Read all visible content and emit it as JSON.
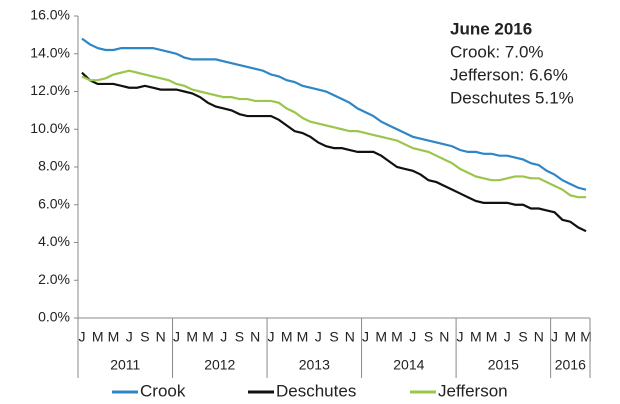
{
  "chart_data": {
    "type": "line",
    "categories": [
      "J",
      null,
      "M",
      null,
      "M",
      null,
      "J",
      null,
      "S",
      null,
      "N",
      null,
      "J",
      null,
      "M",
      null,
      "M",
      null,
      "J",
      null,
      "S",
      null,
      "N",
      null,
      "J",
      null,
      "M",
      null,
      "M",
      null,
      "J",
      null,
      "S",
      null,
      "N",
      null,
      "J",
      null,
      "M",
      null,
      "M",
      null,
      "J",
      null,
      "S",
      null,
      "N",
      null,
      "J",
      null,
      "M",
      null,
      "M",
      null,
      "J",
      null,
      "S",
      null,
      "N",
      null,
      "J",
      null,
      "M",
      null,
      "M"
    ],
    "x_groups": [
      "2011",
      "2012",
      "2013",
      "2014",
      "2015",
      "2016"
    ],
    "series": [
      {
        "name": "Crook",
        "color": "#2f86c6",
        "values": [
          14.8,
          14.5,
          14.3,
          14.2,
          14.2,
          14.3,
          14.3,
          14.3,
          14.3,
          14.3,
          14.2,
          14.1,
          14.0,
          13.8,
          13.7,
          13.7,
          13.7,
          13.7,
          13.6,
          13.5,
          13.4,
          13.3,
          13.2,
          13.1,
          12.9,
          12.8,
          12.6,
          12.5,
          12.3,
          12.2,
          12.1,
          12.0,
          11.8,
          11.6,
          11.4,
          11.1,
          10.9,
          10.7,
          10.4,
          10.2,
          10.0,
          9.8,
          9.6,
          9.5,
          9.4,
          9.3,
          9.2,
          9.1,
          8.9,
          8.8,
          8.8,
          8.7,
          8.7,
          8.6,
          8.6,
          8.5,
          8.4,
          8.2,
          8.1,
          7.8,
          7.6,
          7.3,
          7.1,
          6.9,
          6.8
        ]
      },
      {
        "name": "Deschutes",
        "color": "#111111",
        "values": [
          13.0,
          12.6,
          12.4,
          12.4,
          12.4,
          12.3,
          12.2,
          12.2,
          12.3,
          12.2,
          12.1,
          12.1,
          12.1,
          12.0,
          11.9,
          11.7,
          11.4,
          11.2,
          11.1,
          11.0,
          10.8,
          10.7,
          10.7,
          10.7,
          10.7,
          10.5,
          10.2,
          9.9,
          9.8,
          9.6,
          9.3,
          9.1,
          9.0,
          9.0,
          8.9,
          8.8,
          8.8,
          8.8,
          8.6,
          8.3,
          8.0,
          7.9,
          7.8,
          7.6,
          7.3,
          7.2,
          7.0,
          6.8,
          6.6,
          6.4,
          6.2,
          6.1,
          6.1,
          6.1,
          6.1,
          6.0,
          6.0,
          5.8,
          5.8,
          5.7,
          5.6,
          5.2,
          5.1,
          4.8,
          4.6
        ]
      },
      {
        "name": "Jefferson",
        "color": "#9cc54c",
        "values": [
          12.8,
          12.6,
          12.6,
          12.7,
          12.9,
          13.0,
          13.1,
          13.0,
          12.9,
          12.8,
          12.7,
          12.6,
          12.4,
          12.3,
          12.1,
          12.0,
          11.9,
          11.8,
          11.7,
          11.7,
          11.6,
          11.6,
          11.5,
          11.5,
          11.5,
          11.4,
          11.1,
          10.9,
          10.6,
          10.4,
          10.3,
          10.2,
          10.1,
          10.0,
          9.9,
          9.9,
          9.8,
          9.7,
          9.6,
          9.5,
          9.4,
          9.2,
          9.0,
          8.9,
          8.8,
          8.6,
          8.4,
          8.2,
          7.9,
          7.7,
          7.5,
          7.4,
          7.3,
          7.3,
          7.4,
          7.5,
          7.5,
          7.4,
          7.4,
          7.2,
          7.0,
          6.8,
          6.5,
          6.4,
          6.4
        ]
      }
    ],
    "ylim": [
      0,
      16
    ],
    "yticks": [
      {
        "value": 0,
        "label": "0.0%"
      },
      {
        "value": 2,
        "label": "2.0%"
      },
      {
        "value": 4,
        "label": "4.0%"
      },
      {
        "value": 6,
        "label": "6.0%"
      },
      {
        "value": 8,
        "label": "8.0%"
      },
      {
        "value": 10,
        "label": "10.0%"
      },
      {
        "value": 12,
        "label": "12.0%"
      },
      {
        "value": 14,
        "label": "14.0%"
      },
      {
        "value": 16,
        "label": "16.0%"
      }
    ],
    "annotation": {
      "title": "June 2016",
      "lines": [
        "Crook: 7.0%",
        "Jefferson: 6.6%",
        "Deschutes 5.1%"
      ]
    },
    "legend": "bottom"
  }
}
